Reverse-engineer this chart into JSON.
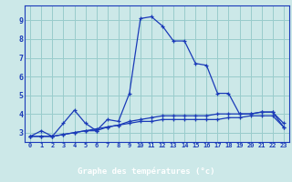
{
  "xlabel": "Graphe des températures (°c)",
  "bg_color": "#cce8e8",
  "grid_color": "#99cccc",
  "line_color": "#1a3ab8",
  "x": [
    0,
    1,
    2,
    3,
    4,
    5,
    6,
    7,
    8,
    9,
    10,
    11,
    12,
    13,
    14,
    15,
    16,
    17,
    18,
    19,
    20,
    21,
    22,
    23
  ],
  "line1": [
    2.8,
    3.1,
    2.8,
    3.5,
    4.2,
    3.5,
    3.1,
    3.7,
    3.6,
    5.1,
    9.1,
    9.2,
    8.7,
    7.9,
    7.9,
    6.7,
    6.6,
    5.1,
    5.1,
    4.0,
    4.0,
    4.1,
    4.1,
    3.3
  ],
  "line2": [
    2.8,
    2.8,
    2.8,
    2.9,
    3.0,
    3.1,
    3.1,
    3.3,
    3.4,
    3.5,
    3.6,
    3.6,
    3.7,
    3.7,
    3.7,
    3.7,
    3.7,
    3.7,
    3.8,
    3.8,
    3.9,
    3.9,
    3.9,
    3.3
  ],
  "line3": [
    2.8,
    2.8,
    2.8,
    2.9,
    3.0,
    3.1,
    3.2,
    3.3,
    3.4,
    3.6,
    3.7,
    3.8,
    3.9,
    3.9,
    3.9,
    3.9,
    3.9,
    4.0,
    4.0,
    4.0,
    4.0,
    4.1,
    4.1,
    3.5
  ],
  "ylim": [
    2.5,
    9.8
  ],
  "yticks": [
    3,
    4,
    5,
    6,
    7,
    8,
    9
  ],
  "xticks": [
    0,
    1,
    2,
    3,
    4,
    5,
    6,
    7,
    8,
    9,
    10,
    11,
    12,
    13,
    14,
    15,
    16,
    17,
    18,
    19,
    20,
    21,
    22,
    23
  ],
  "xlim": [
    -0.5,
    23.5
  ],
  "bottom_bar_color": "#1a3ab8",
  "bottom_bar_height": 0.13
}
